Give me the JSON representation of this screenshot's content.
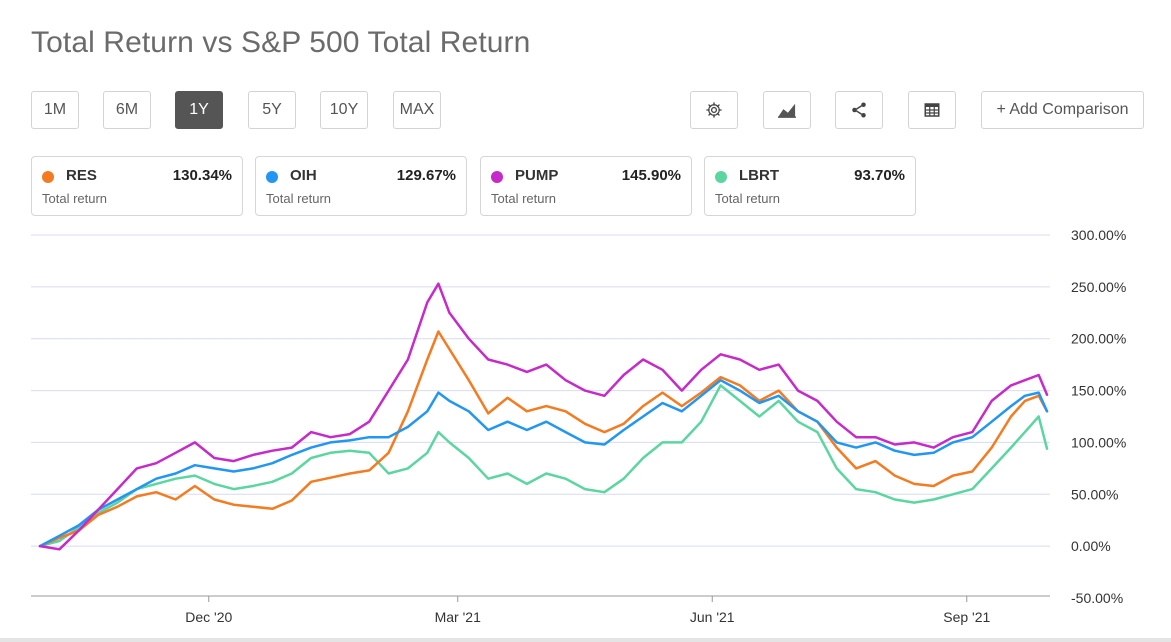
{
  "title": "Total Return vs S&P 500 Total Return",
  "range_buttons": [
    {
      "label": "1M",
      "active": false
    },
    {
      "label": "6M",
      "active": false
    },
    {
      "label": "1Y",
      "active": true
    },
    {
      "label": "5Y",
      "active": false
    },
    {
      "label": "10Y",
      "active": false
    },
    {
      "label": "MAX",
      "active": false
    }
  ],
  "tool_icons": [
    "gear-icon",
    "chart-type-icon",
    "share-icon",
    "table-icon"
  ],
  "add_comparison_label": "+ Add Comparison",
  "cards": [
    {
      "symbol": "RES",
      "value": "130.34%",
      "sub": "Total return",
      "color": "#f47b20"
    },
    {
      "symbol": "OIH",
      "value": "129.67%",
      "sub": "Total return",
      "color": "#2196f3"
    },
    {
      "symbol": "PUMP",
      "value": "145.90%",
      "sub": "Total return",
      "color": "#c62ac9"
    },
    {
      "symbol": "LBRT",
      "value": "93.70%",
      "sub": "Total return",
      "color": "#5cd6a0"
    }
  ],
  "chart_data": {
    "type": "line",
    "y_tick_labels": [
      "300.00%",
      "250.00%",
      "200.00%",
      "150.00%",
      "100.00%",
      "50.00%",
      "0.00%",
      "-50.00%"
    ],
    "y_ticks": [
      300,
      250,
      200,
      150,
      100,
      50,
      0,
      -50
    ],
    "ylim": [
      -50,
      300
    ],
    "x_tick_labels": [
      "Dec '20",
      "Mar '21",
      "Jun '21",
      "Sep '21"
    ],
    "x_ticks": [
      "2020-12-01",
      "2021-03-01",
      "2021-06-01",
      "2021-09-01"
    ],
    "xlim": [
      "2020-10-01",
      "2021-09-30"
    ],
    "grid": true,
    "series": [
      {
        "name": "RES",
        "color": "#f47b20",
        "points": [
          [
            "2020-10-01",
            0
          ],
          [
            "2020-10-08",
            8
          ],
          [
            "2020-10-15",
            15
          ],
          [
            "2020-10-22",
            30
          ],
          [
            "2020-10-29",
            38
          ],
          [
            "2020-11-05",
            48
          ],
          [
            "2020-11-12",
            52
          ],
          [
            "2020-11-19",
            45
          ],
          [
            "2020-11-26",
            58
          ],
          [
            "2020-12-03",
            45
          ],
          [
            "2020-12-10",
            40
          ],
          [
            "2020-12-17",
            38
          ],
          [
            "2020-12-24",
            36
          ],
          [
            "2020-12-31",
            44
          ],
          [
            "2021-01-07",
            62
          ],
          [
            "2021-01-14",
            66
          ],
          [
            "2021-01-21",
            70
          ],
          [
            "2021-01-28",
            73
          ],
          [
            "2021-02-04",
            90
          ],
          [
            "2021-02-11",
            130
          ],
          [
            "2021-02-18",
            180
          ],
          [
            "2021-02-22",
            207
          ],
          [
            "2021-02-26",
            190
          ],
          [
            "2021-03-05",
            160
          ],
          [
            "2021-03-12",
            128
          ],
          [
            "2021-03-19",
            143
          ],
          [
            "2021-03-26",
            130
          ],
          [
            "2021-04-02",
            135
          ],
          [
            "2021-04-09",
            130
          ],
          [
            "2021-04-16",
            118
          ],
          [
            "2021-04-23",
            110
          ],
          [
            "2021-04-30",
            118
          ],
          [
            "2021-05-07",
            135
          ],
          [
            "2021-05-14",
            148
          ],
          [
            "2021-05-21",
            135
          ],
          [
            "2021-05-28",
            148
          ],
          [
            "2021-06-04",
            163
          ],
          [
            "2021-06-11",
            155
          ],
          [
            "2021-06-18",
            140
          ],
          [
            "2021-06-25",
            150
          ],
          [
            "2021-07-02",
            130
          ],
          [
            "2021-07-09",
            120
          ],
          [
            "2021-07-16",
            95
          ],
          [
            "2021-07-23",
            75
          ],
          [
            "2021-07-30",
            82
          ],
          [
            "2021-08-06",
            68
          ],
          [
            "2021-08-13",
            60
          ],
          [
            "2021-08-20",
            58
          ],
          [
            "2021-08-27",
            68
          ],
          [
            "2021-09-03",
            72
          ],
          [
            "2021-09-10",
            95
          ],
          [
            "2021-09-17",
            125
          ],
          [
            "2021-09-22",
            140
          ],
          [
            "2021-09-27",
            145
          ],
          [
            "2021-09-30",
            130
          ]
        ]
      },
      {
        "name": "OIH",
        "color": "#2196f3",
        "points": [
          [
            "2020-10-01",
            0
          ],
          [
            "2020-10-08",
            10
          ],
          [
            "2020-10-15",
            20
          ],
          [
            "2020-10-22",
            35
          ],
          [
            "2020-10-29",
            45
          ],
          [
            "2020-11-05",
            55
          ],
          [
            "2020-11-12",
            65
          ],
          [
            "2020-11-19",
            70
          ],
          [
            "2020-11-26",
            78
          ],
          [
            "2020-12-03",
            75
          ],
          [
            "2020-12-10",
            72
          ],
          [
            "2020-12-17",
            75
          ],
          [
            "2020-12-24",
            80
          ],
          [
            "2020-12-31",
            88
          ],
          [
            "2021-01-07",
            95
          ],
          [
            "2021-01-14",
            100
          ],
          [
            "2021-01-21",
            102
          ],
          [
            "2021-01-28",
            105
          ],
          [
            "2021-02-04",
            105
          ],
          [
            "2021-02-11",
            115
          ],
          [
            "2021-02-18",
            130
          ],
          [
            "2021-02-22",
            148
          ],
          [
            "2021-02-26",
            140
          ],
          [
            "2021-03-05",
            130
          ],
          [
            "2021-03-12",
            112
          ],
          [
            "2021-03-19",
            120
          ],
          [
            "2021-03-26",
            112
          ],
          [
            "2021-04-02",
            120
          ],
          [
            "2021-04-09",
            110
          ],
          [
            "2021-04-16",
            100
          ],
          [
            "2021-04-23",
            98
          ],
          [
            "2021-04-30",
            112
          ],
          [
            "2021-05-07",
            125
          ],
          [
            "2021-05-14",
            138
          ],
          [
            "2021-05-21",
            130
          ],
          [
            "2021-05-28",
            145
          ],
          [
            "2021-06-04",
            160
          ],
          [
            "2021-06-11",
            150
          ],
          [
            "2021-06-18",
            138
          ],
          [
            "2021-06-25",
            145
          ],
          [
            "2021-07-02",
            130
          ],
          [
            "2021-07-09",
            120
          ],
          [
            "2021-07-16",
            100
          ],
          [
            "2021-07-23",
            95
          ],
          [
            "2021-07-30",
            100
          ],
          [
            "2021-08-06",
            92
          ],
          [
            "2021-08-13",
            88
          ],
          [
            "2021-08-20",
            90
          ],
          [
            "2021-08-27",
            100
          ],
          [
            "2021-09-03",
            105
          ],
          [
            "2021-09-10",
            120
          ],
          [
            "2021-09-17",
            135
          ],
          [
            "2021-09-22",
            145
          ],
          [
            "2021-09-27",
            148
          ],
          [
            "2021-09-30",
            130
          ]
        ]
      },
      {
        "name": "PUMP",
        "color": "#c62ac9",
        "points": [
          [
            "2020-10-01",
            0
          ],
          [
            "2020-10-08",
            -3
          ],
          [
            "2020-10-15",
            15
          ],
          [
            "2020-10-22",
            35
          ],
          [
            "2020-10-29",
            55
          ],
          [
            "2020-11-05",
            75
          ],
          [
            "2020-11-12",
            80
          ],
          [
            "2020-11-19",
            90
          ],
          [
            "2020-11-26",
            100
          ],
          [
            "2020-12-03",
            85
          ],
          [
            "2020-12-10",
            82
          ],
          [
            "2020-12-17",
            88
          ],
          [
            "2020-12-24",
            92
          ],
          [
            "2020-12-31",
            95
          ],
          [
            "2021-01-07",
            110
          ],
          [
            "2021-01-14",
            105
          ],
          [
            "2021-01-21",
            108
          ],
          [
            "2021-01-28",
            120
          ],
          [
            "2021-02-04",
            150
          ],
          [
            "2021-02-11",
            180
          ],
          [
            "2021-02-18",
            235
          ],
          [
            "2021-02-22",
            253
          ],
          [
            "2021-02-26",
            225
          ],
          [
            "2021-03-05",
            200
          ],
          [
            "2021-03-12",
            180
          ],
          [
            "2021-03-19",
            175
          ],
          [
            "2021-03-26",
            168
          ],
          [
            "2021-04-02",
            175
          ],
          [
            "2021-04-09",
            160
          ],
          [
            "2021-04-16",
            150
          ],
          [
            "2021-04-23",
            145
          ],
          [
            "2021-04-30",
            165
          ],
          [
            "2021-05-07",
            180
          ],
          [
            "2021-05-14",
            170
          ],
          [
            "2021-05-21",
            150
          ],
          [
            "2021-05-28",
            170
          ],
          [
            "2021-06-04",
            185
          ],
          [
            "2021-06-11",
            180
          ],
          [
            "2021-06-18",
            170
          ],
          [
            "2021-06-25",
            175
          ],
          [
            "2021-07-02",
            150
          ],
          [
            "2021-07-09",
            140
          ],
          [
            "2021-07-16",
            120
          ],
          [
            "2021-07-23",
            105
          ],
          [
            "2021-07-30",
            105
          ],
          [
            "2021-08-06",
            98
          ],
          [
            "2021-08-13",
            100
          ],
          [
            "2021-08-20",
            95
          ],
          [
            "2021-08-27",
            105
          ],
          [
            "2021-09-03",
            110
          ],
          [
            "2021-09-10",
            140
          ],
          [
            "2021-09-17",
            155
          ],
          [
            "2021-09-22",
            160
          ],
          [
            "2021-09-27",
            165
          ],
          [
            "2021-09-30",
            146
          ]
        ]
      },
      {
        "name": "LBRT",
        "color": "#5cd6a0",
        "points": [
          [
            "2020-10-01",
            0
          ],
          [
            "2020-10-08",
            5
          ],
          [
            "2020-10-15",
            18
          ],
          [
            "2020-10-22",
            32
          ],
          [
            "2020-10-29",
            42
          ],
          [
            "2020-11-05",
            55
          ],
          [
            "2020-11-12",
            60
          ],
          [
            "2020-11-19",
            65
          ],
          [
            "2020-11-26",
            68
          ],
          [
            "2020-12-03",
            60
          ],
          [
            "2020-12-10",
            55
          ],
          [
            "2020-12-17",
            58
          ],
          [
            "2020-12-24",
            62
          ],
          [
            "2020-12-31",
            70
          ],
          [
            "2021-01-07",
            85
          ],
          [
            "2021-01-14",
            90
          ],
          [
            "2021-01-21",
            92
          ],
          [
            "2021-01-28",
            90
          ],
          [
            "2021-02-04",
            70
          ],
          [
            "2021-02-11",
            75
          ],
          [
            "2021-02-18",
            90
          ],
          [
            "2021-02-22",
            110
          ],
          [
            "2021-02-26",
            100
          ],
          [
            "2021-03-05",
            85
          ],
          [
            "2021-03-12",
            65
          ],
          [
            "2021-03-19",
            70
          ],
          [
            "2021-03-26",
            60
          ],
          [
            "2021-04-02",
            70
          ],
          [
            "2021-04-09",
            65
          ],
          [
            "2021-04-16",
            55
          ],
          [
            "2021-04-23",
            52
          ],
          [
            "2021-04-30",
            65
          ],
          [
            "2021-05-07",
            85
          ],
          [
            "2021-05-14",
            100
          ],
          [
            "2021-05-21",
            100
          ],
          [
            "2021-05-28",
            120
          ],
          [
            "2021-06-04",
            155
          ],
          [
            "2021-06-11",
            140
          ],
          [
            "2021-06-18",
            125
          ],
          [
            "2021-06-25",
            140
          ],
          [
            "2021-07-02",
            120
          ],
          [
            "2021-07-09",
            110
          ],
          [
            "2021-07-16",
            75
          ],
          [
            "2021-07-23",
            55
          ],
          [
            "2021-07-30",
            52
          ],
          [
            "2021-08-06",
            45
          ],
          [
            "2021-08-13",
            42
          ],
          [
            "2021-08-20",
            45
          ],
          [
            "2021-08-27",
            50
          ],
          [
            "2021-09-03",
            55
          ],
          [
            "2021-09-10",
            75
          ],
          [
            "2021-09-17",
            95
          ],
          [
            "2021-09-22",
            110
          ],
          [
            "2021-09-27",
            125
          ],
          [
            "2021-09-30",
            94
          ]
        ]
      }
    ]
  }
}
